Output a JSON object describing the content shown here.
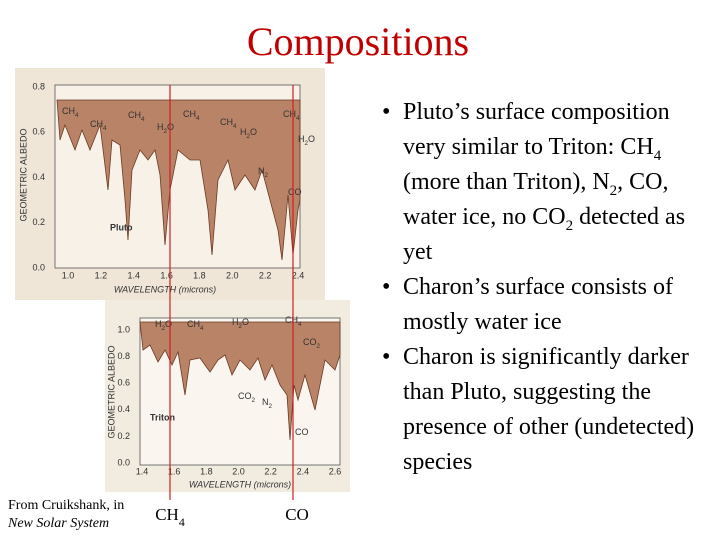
{
  "title": "Compositions",
  "bullets": [
    [
      "Pluto’s surface composition very similar to Triton: CH",
      "4",
      " (more than Triton), N",
      "2",
      ", CO, water ice, no CO",
      "2",
      " detected as yet"
    ],
    [
      "Charon’s surface consists of mostly water ice"
    ],
    [
      "Charon is significantly darker than Pluto, suggesting the presence of other (undetected) species"
    ]
  ],
  "caption": [
    "From Cruikshank, in",
    "New Solar System"
  ],
  "markers": [
    "CH4",
    "CO"
  ],
  "figures": [
    {
      "name": "Pluto",
      "ylabel": "GEOMETRIC ALBEDO",
      "xlabel": "WAVELENGTH (microns)",
      "yticks": [
        "0.0",
        "0.2",
        "0.4",
        "0.6",
        "0.8"
      ],
      "xticks": [
        "1.0",
        "1.2",
        "1.4",
        "1.6",
        "1.8",
        "2.0",
        "2.2",
        "2.4"
      ],
      "features": [
        "CH4",
        "CH4",
        "CH4",
        "H2O",
        "CH4",
        "CH4",
        "H2O",
        "CH4",
        "H2O",
        "N2",
        "CO"
      ]
    },
    {
      "name": "Triton",
      "ylabel": "GEOMETRIC ALBEDO",
      "xlabel": "WAVELENGTH (microns)",
      "yticks": [
        "0.0",
        "0.2",
        "0.4",
        "0.6",
        "0.8",
        "1.0"
      ],
      "xticks": [
        "1.4",
        "1.6",
        "1.8",
        "2.0",
        "2.2",
        "2.4",
        "2.6"
      ],
      "features": [
        "H2O",
        "CH4",
        "H2O",
        "CH4",
        "CO2",
        "CO2",
        "N2",
        "CO"
      ]
    }
  ]
}
